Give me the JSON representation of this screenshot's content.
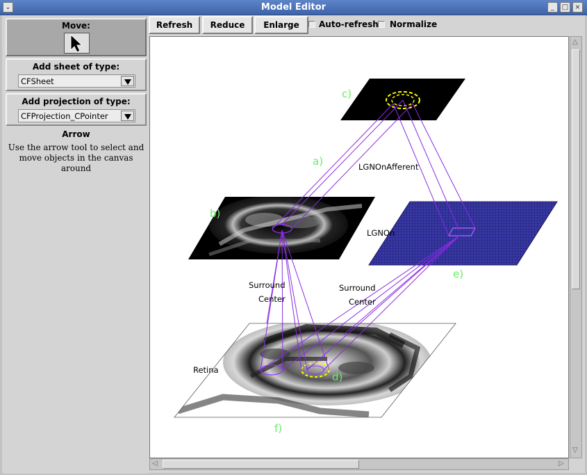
{
  "window": {
    "title": "Model Editor"
  },
  "left_panel": {
    "move_label": "Move:",
    "add_sheet_label": "Add sheet of type:",
    "sheet_type_selected": "CFSheet",
    "add_projection_label": "Add projection of type:",
    "projection_type_selected": "CFProjection_CPointer",
    "tool_title": "Arrow",
    "tool_description": "Use the arrow tool to select and move objects in the canvas around"
  },
  "toolbar": {
    "refresh": "Refresh",
    "reduce": "Reduce",
    "enlarge": "Enlarge",
    "auto_refresh": "Auto-refresh",
    "auto_refresh_checked": false,
    "normalize": "Normalize",
    "normalize_checked": false
  },
  "canvas": {
    "sheet_labels": {
      "retina": "Retina",
      "lgnon": "LGNOn",
      "lgnonafferent": "LGNOnAfferent",
      "surround_left": "Surround",
      "center_left": "Center",
      "surround_right": "Surround",
      "center_right": "Center"
    },
    "annotations": {
      "a": "a)",
      "b": "b)",
      "c": "c)",
      "d": "d)",
      "e": "e)",
      "f": "f)"
    },
    "colors": {
      "annotation": "#66ee66",
      "projection": "#8a2be2",
      "highlight": "#ffff00",
      "lgn_sheet": "#3b3bb0"
    }
  },
  "icons": {
    "move_tool": "arrow-cursor-icon",
    "dropdown": "chevron-down-icon"
  }
}
